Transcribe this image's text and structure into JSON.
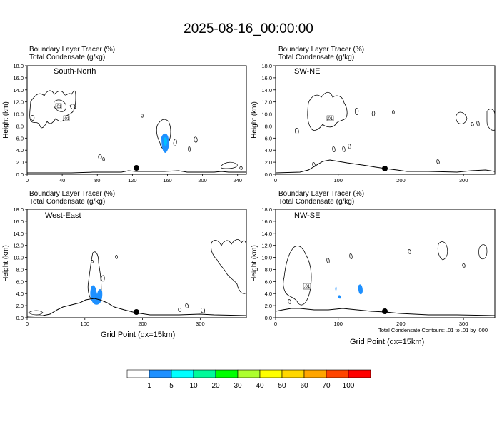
{
  "title": "2025-08-16_00:00:00",
  "panels": [
    {
      "id": "south-north",
      "line1": "Boundary Layer Tracer   (%)",
      "line2": "Total Condensate   (g/kg)",
      "label": "South-North",
      "ylabel": "Height (km)",
      "xlabel": ""
    },
    {
      "id": "sw-ne",
      "line1": "Boundary Layer Tracer   (%)",
      "line2": "Total Condensate   (g/kg)",
      "label": "SW-NE",
      "ylabel": "Height (km)",
      "xlabel": ""
    },
    {
      "id": "west-east",
      "line1": "Boundary Layer Tracer   (%)",
      "line2": "Total Condensate   (g/kg)",
      "label": "West-East",
      "ylabel": "Height (km)",
      "xlabel": "Grid Point (dx=15km)"
    },
    {
      "id": "nw-se",
      "line1": "Boundary Layer Tracer   (%)",
      "line2": "Total Condensate   (g/kg)",
      "label": "NW-SE",
      "ylabel": "Height (km)",
      "xlabel": "Grid Point (dx=15km)"
    }
  ],
  "footnote": "Total Condensate Contours: .01 to .01 by .000",
  "contour_label": ".01",
  "colorbar": {
    "labels": [
      "1",
      "5",
      "10",
      "20",
      "30",
      "40",
      "50",
      "60",
      "70",
      "100"
    ],
    "colors": [
      "#ffffff",
      "#1e90ff",
      "#00ffff",
      "#00fa9a",
      "#00ff00",
      "#adff2f",
      "#ffff00",
      "#ffd700",
      "#ffa500",
      "#ff4500",
      "#ff0000"
    ]
  },
  "chart_data": [
    {
      "type": "heatmap",
      "panel": "South-North",
      "xlim": [
        0,
        250
      ],
      "ylim": [
        0,
        18
      ],
      "x_ticks": [
        "0",
        "40",
        "80",
        "120",
        "160",
        "200",
        "240"
      ],
      "y_ticks": [
        "0.0",
        "2.0",
        "4.0",
        "6.0",
        "8.0",
        "10.0",
        "12.0",
        "14.0",
        "16.0",
        "18.0"
      ],
      "marker": {
        "x": 125,
        "y": 1.0
      }
    },
    {
      "type": "heatmap",
      "panel": "SW-NE",
      "xlim": [
        0,
        350
      ],
      "ylim": [
        0,
        18
      ],
      "x_ticks": [
        "0",
        "100",
        "200",
        "300"
      ],
      "y_ticks": [
        "0.0",
        "2.0",
        "4.0",
        "6.0",
        "8.0",
        "10.0",
        "12.0",
        "14.0",
        "16.0",
        "18.0"
      ],
      "marker": {
        "x": 178,
        "y": 1.0
      }
    },
    {
      "type": "heatmap",
      "panel": "West-East",
      "xlim": [
        0,
        380
      ],
      "ylim": [
        0,
        18
      ],
      "x_ticks": [
        "0",
        "100",
        "200",
        "300"
      ],
      "y_ticks": [
        "0.0",
        "2.0",
        "4.0",
        "6.0",
        "8.0",
        "10.0",
        "12.0",
        "14.0",
        "16.0",
        "18.0"
      ],
      "marker": {
        "x": 190,
        "y": 1.0
      }
    },
    {
      "type": "heatmap",
      "panel": "NW-SE",
      "xlim": [
        0,
        350
      ],
      "ylim": [
        0,
        18
      ],
      "x_ticks": [
        "0",
        "100",
        "200",
        "300"
      ],
      "y_ticks": [
        "0.0",
        "2.0",
        "4.0",
        "6.0",
        "8.0",
        "10.0",
        "12.0",
        "14.0",
        "16.0",
        "18.0"
      ],
      "marker": {
        "x": 178,
        "y": 1.0
      }
    }
  ]
}
